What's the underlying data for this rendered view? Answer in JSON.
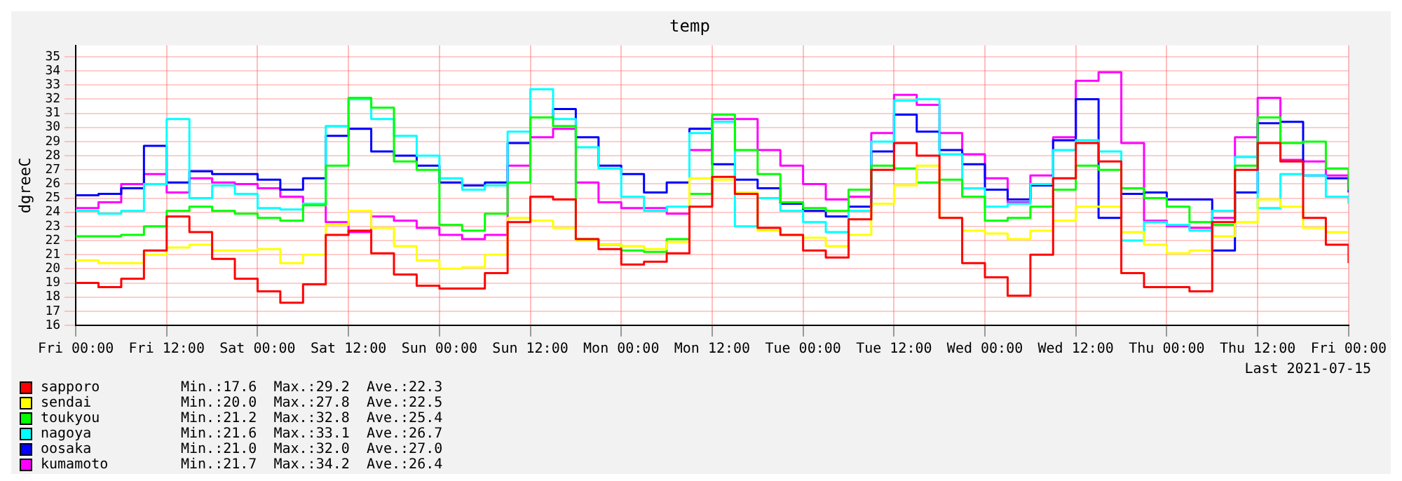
{
  "chart_data": {
    "type": "step",
    "title": "temp",
    "ylabel": "dgreeC",
    "grid": true,
    "legend": "bottom left",
    "ylim": [
      16,
      35.8
    ],
    "yticks": [
      16,
      17,
      18,
      19,
      20,
      21,
      22,
      23,
      24,
      25,
      26,
      27,
      28,
      29,
      30,
      31,
      32,
      33,
      34,
      35
    ],
    "xlim": [
      "2021-07-09T00:00",
      "2021-07-16T00:00"
    ],
    "xticks": [
      {
        "value": "2021-07-09T00:00",
        "label": "Fri 00:00"
      },
      {
        "value": "2021-07-09T12:00",
        "label": "Fri 12:00"
      },
      {
        "value": "2021-07-10T00:00",
        "label": "Sat 00:00"
      },
      {
        "value": "2021-07-10T12:00",
        "label": "Sat 12:00"
      },
      {
        "value": "2021-07-11T00:00",
        "label": "Sun 00:00"
      },
      {
        "value": "2021-07-11T12:00",
        "label": "Sun 12:00"
      },
      {
        "value": "2021-07-12T00:00",
        "label": "Mon 00:00"
      },
      {
        "value": "2021-07-12T12:00",
        "label": "Mon 12:00"
      },
      {
        "value": "2021-07-13T00:00",
        "label": "Tue 00:00"
      },
      {
        "value": "2021-07-13T12:00",
        "label": "Tue 12:00"
      },
      {
        "value": "2021-07-14T00:00",
        "label": "Wed 00:00"
      },
      {
        "value": "2021-07-14T12:00",
        "label": "Wed 12:00"
      },
      {
        "value": "2021-07-15T00:00",
        "label": "Thu 00:00"
      },
      {
        "value": "2021-07-15T12:00",
        "label": "Thu 12:00"
      },
      {
        "value": "2021-07-16T00:00",
        "label": "Fri 00:00"
      }
    ],
    "x": [
      "2021-07-09T00:00",
      "2021-07-09T03:00",
      "2021-07-09T06:00",
      "2021-07-09T09:00",
      "2021-07-09T12:00",
      "2021-07-09T15:00",
      "2021-07-09T18:00",
      "2021-07-09T21:00",
      "2021-07-10T00:00",
      "2021-07-10T03:00",
      "2021-07-10T06:00",
      "2021-07-10T09:00",
      "2021-07-10T12:00",
      "2021-07-10T15:00",
      "2021-07-10T18:00",
      "2021-07-10T21:00",
      "2021-07-11T00:00",
      "2021-07-11T03:00",
      "2021-07-11T06:00",
      "2021-07-11T09:00",
      "2021-07-11T12:00",
      "2021-07-11T15:00",
      "2021-07-11T18:00",
      "2021-07-11T21:00",
      "2021-07-12T00:00",
      "2021-07-12T03:00",
      "2021-07-12T06:00",
      "2021-07-12T09:00",
      "2021-07-12T12:00",
      "2021-07-12T15:00",
      "2021-07-12T18:00",
      "2021-07-12T21:00",
      "2021-07-13T00:00",
      "2021-07-13T03:00",
      "2021-07-13T06:00",
      "2021-07-13T09:00",
      "2021-07-13T12:00",
      "2021-07-13T15:00",
      "2021-07-13T18:00",
      "2021-07-13T21:00",
      "2021-07-14T00:00",
      "2021-07-14T03:00",
      "2021-07-14T06:00",
      "2021-07-14T09:00",
      "2021-07-14T12:00",
      "2021-07-14T15:00",
      "2021-07-14T18:00",
      "2021-07-14T21:00",
      "2021-07-15T00:00",
      "2021-07-15T03:00",
      "2021-07-15T06:00",
      "2021-07-15T09:00",
      "2021-07-15T12:00",
      "2021-07-15T15:00",
      "2021-07-15T18:00",
      "2021-07-15T21:00",
      "2021-07-16T00:00"
    ],
    "series": [
      {
        "name": "sapporo",
        "color": "#ff0000",
        "values": [
          19.0,
          18.7,
          19.3,
          21.3,
          23.7,
          22.6,
          20.7,
          19.3,
          18.4,
          17.6,
          18.9,
          22.4,
          22.7,
          21.1,
          19.6,
          18.8,
          18.6,
          18.6,
          19.7,
          23.3,
          25.1,
          24.9,
          22.1,
          21.4,
          20.3,
          20.5,
          21.1,
          24.4,
          26.5,
          25.3,
          22.9,
          22.4,
          21.3,
          20.8,
          23.5,
          27.0,
          28.9,
          28.0,
          23.6,
          20.4,
          19.4,
          18.1,
          21.0,
          26.4,
          28.9,
          27.6,
          19.7,
          18.7,
          18.7,
          18.4,
          23.3,
          27.0,
          28.9,
          27.6,
          23.6,
          21.7,
          20.4
        ]
      },
      {
        "name": "sendai",
        "color": "#ffff00",
        "values": [
          20.6,
          20.4,
          20.4,
          21.0,
          21.5,
          21.7,
          21.3,
          21.3,
          21.4,
          20.4,
          21.0,
          23.1,
          24.1,
          22.9,
          21.6,
          20.6,
          20.0,
          20.1,
          21.0,
          23.6,
          23.4,
          22.9,
          22.0,
          21.7,
          21.6,
          21.4,
          21.9,
          26.4,
          26.3,
          25.4,
          22.7,
          22.4,
          22.2,
          21.6,
          22.4,
          24.6,
          25.9,
          27.3,
          23.6,
          22.7,
          22.5,
          22.1,
          22.7,
          23.4,
          24.4,
          24.4,
          22.6,
          21.7,
          21.1,
          21.3,
          22.3,
          23.3,
          24.9,
          24.4,
          22.9,
          22.6,
          22.5
        ]
      },
      {
        "name": "toukyou",
        "color": "#00ff00",
        "values": [
          22.3,
          22.3,
          22.4,
          23.0,
          24.1,
          24.4,
          24.1,
          23.9,
          23.6,
          23.4,
          24.5,
          27.3,
          32.1,
          31.4,
          27.6,
          27.0,
          23.1,
          22.7,
          23.9,
          26.1,
          30.7,
          30.1,
          22.1,
          21.7,
          21.3,
          21.2,
          22.1,
          25.3,
          30.9,
          28.4,
          26.7,
          24.7,
          24.3,
          24.1,
          25.6,
          27.3,
          27.1,
          26.1,
          26.3,
          25.1,
          23.4,
          23.6,
          24.4,
          25.6,
          27.3,
          27.0,
          25.7,
          25.0,
          24.4,
          23.3,
          23.1,
          27.3,
          30.7,
          28.9,
          29.0,
          27.1,
          25.6
        ]
      },
      {
        "name": "nagoya",
        "color": "#00ffff",
        "values": [
          24.1,
          23.9,
          24.1,
          26.0,
          30.6,
          25.0,
          25.9,
          25.3,
          24.3,
          24.2,
          24.6,
          30.1,
          32.0,
          30.6,
          29.4,
          28.0,
          26.4,
          25.6,
          25.9,
          29.7,
          32.7,
          30.6,
          28.6,
          27.1,
          25.1,
          24.1,
          24.4,
          29.6,
          30.4,
          23.0,
          25.0,
          24.1,
          23.3,
          22.6,
          24.1,
          29.0,
          31.9,
          32.0,
          28.1,
          25.7,
          24.4,
          24.6,
          26.0,
          28.4,
          29.1,
          28.3,
          22.0,
          23.3,
          23.1,
          22.7,
          24.1,
          27.9,
          24.3,
          26.7,
          26.6,
          25.1,
          24.6
        ]
      },
      {
        "name": "oosaka",
        "color": "#0000ff",
        "values": [
          25.2,
          25.3,
          25.7,
          28.7,
          26.1,
          26.9,
          26.7,
          26.7,
          26.3,
          25.6,
          26.4,
          29.4,
          29.9,
          28.3,
          28.0,
          27.3,
          26.1,
          25.9,
          26.1,
          28.9,
          30.7,
          31.3,
          29.3,
          27.3,
          26.7,
          25.4,
          26.1,
          29.9,
          27.4,
          26.3,
          25.7,
          24.6,
          24.1,
          23.7,
          24.4,
          28.3,
          30.9,
          29.7,
          28.4,
          27.4,
          25.6,
          24.9,
          25.9,
          29.1,
          32.0,
          23.6,
          25.3,
          25.4,
          24.9,
          24.9,
          21.3,
          25.4,
          30.3,
          30.4,
          26.6,
          26.4,
          25.4
        ]
      },
      {
        "name": "kumamoto",
        "color": "#ff00ff",
        "values": [
          24.3,
          24.7,
          26.0,
          26.7,
          25.4,
          26.4,
          26.1,
          26.0,
          25.7,
          25.1,
          24.6,
          23.3,
          22.6,
          23.7,
          23.4,
          22.9,
          22.4,
          22.1,
          22.4,
          27.3,
          29.3,
          29.9,
          26.1,
          24.7,
          24.3,
          24.3,
          23.9,
          28.4,
          30.6,
          30.6,
          28.4,
          27.3,
          26.0,
          24.9,
          25.1,
          29.6,
          32.3,
          31.6,
          29.6,
          28.1,
          26.4,
          24.7,
          26.6,
          29.3,
          33.3,
          33.9,
          28.9,
          23.4,
          23.0,
          22.9,
          23.6,
          29.3,
          32.1,
          27.7,
          27.6,
          26.6,
          25.7
        ]
      }
    ],
    "annotations": [
      "Min.:17.6  Max.:29.2  Ave.:22.3",
      "Min.:20.0  Max.:27.8  Ave.:22.5",
      "Min.:21.2  Max.:32.8  Ave.:25.4",
      "Min.:21.6  Max.:33.1  Ave.:26.7",
      "Min.:21.0  Max.:32.0  Ave.:27.0",
      "Min.:21.7  Max.:34.2  Ave.:26.4",
      "Last 2021-07-15"
    ]
  }
}
